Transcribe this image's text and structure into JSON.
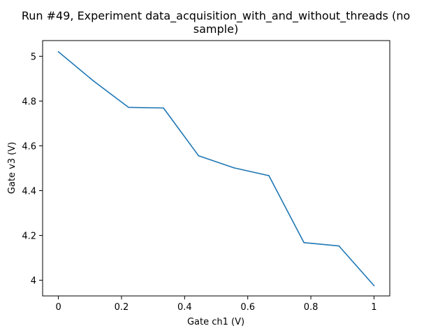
{
  "chart_data": {
    "type": "line",
    "title": "Run #49, Experiment data_acquisition_with_and_without_threads (no sample)",
    "title_lines": [
      "Run #49, Experiment data_acquisition_with_and_without_threads (no",
      "sample)"
    ],
    "xlabel": "Gate ch1 (V)",
    "ylabel": "Gate v3 (V)",
    "xlim": [
      -0.05,
      1.05
    ],
    "ylim": [
      3.93,
      5.07
    ],
    "xticks": [
      0,
      0.2,
      0.4,
      0.6,
      0.8,
      1
    ],
    "xtick_labels": [
      "0",
      "0.2",
      "0.4",
      "0.6",
      "0.8",
      "1"
    ],
    "yticks": [
      4,
      4.2,
      4.4,
      4.6,
      4.8,
      5
    ],
    "ytick_labels": [
      "4",
      "4.2",
      "4.4",
      "4.6",
      "4.8",
      "5"
    ],
    "grid": false,
    "series": [
      {
        "color": "#1f77b4",
        "x": [
          0,
          0.111,
          0.222,
          0.333,
          0.444,
          0.556,
          0.667,
          0.778,
          0.889,
          1.0
        ],
        "y": [
          5.02,
          4.89,
          4.772,
          4.769,
          4.556,
          4.502,
          4.467,
          4.168,
          4.153,
          3.976
        ]
      }
    ]
  }
}
